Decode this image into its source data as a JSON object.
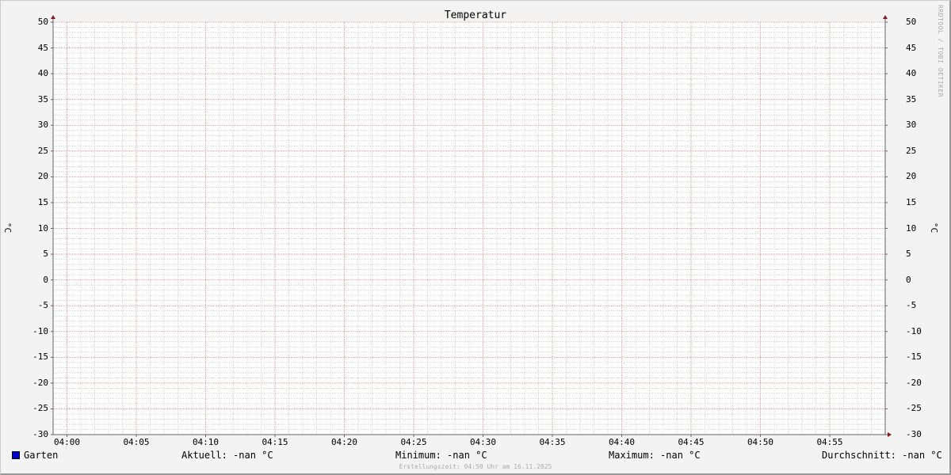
{
  "chart_data": {
    "type": "line",
    "title": "Temperatur",
    "ylabel": "°C",
    "ylabel_right": "°C",
    "ylim": [
      -30,
      50
    ],
    "y_ticks": [
      50,
      45,
      40,
      35,
      30,
      25,
      20,
      15,
      10,
      5,
      0,
      -5,
      -10,
      -15,
      -20,
      -25,
      -30
    ],
    "xlim": [
      "03:59",
      "04:59"
    ],
    "x_ticks": [
      "04:00",
      "04:05",
      "04:10",
      "04:15",
      "04:20",
      "04:25",
      "04:30",
      "04:35",
      "04:40",
      "04:45",
      "04:50",
      "04:55"
    ],
    "grid": true,
    "series": [
      {
        "name": "Garten",
        "color": "#0000cc",
        "values": []
      }
    ]
  },
  "legend": {
    "series_name": "Garten",
    "current": "Aktuell: -nan °C",
    "minimum": "Minimum: -nan °C",
    "maximum": "Maximum: -nan °C",
    "average": "Durchschnitt: -nan °C"
  },
  "watermark": "RRDTOOL / TOBI OETIKER",
  "created": "Erstellungszeit: 04:50 Uhr am 16.11.2025",
  "colors": {
    "major_grid": "#e08080",
    "minor_grid": "#c8c8c8",
    "axis": "#666666",
    "arrow": "#8b1a1a",
    "background": "#f3f3f3",
    "canvas": "#ffffff"
  }
}
